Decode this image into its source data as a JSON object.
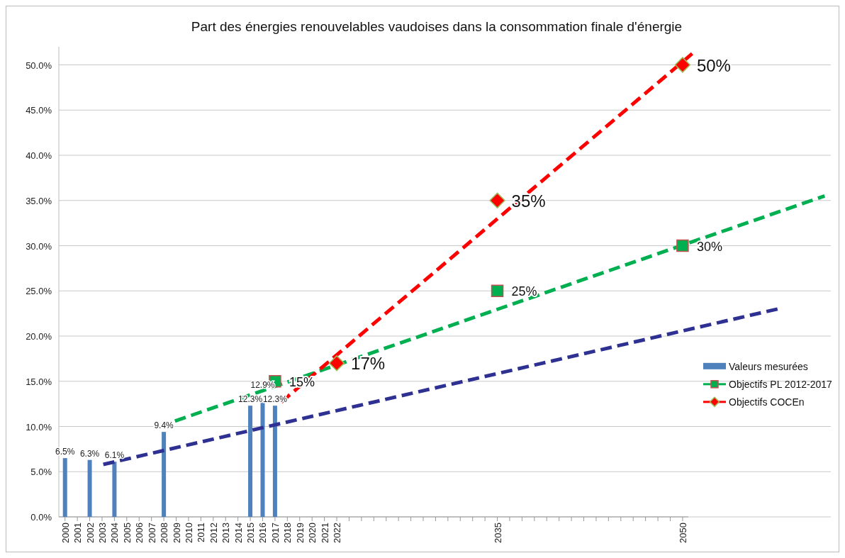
{
  "chart_data": {
    "type": "bar",
    "title": "Part des énergies renouvelables vaudoises dans la consommation finale d'énergie",
    "xlim": [
      1999.5,
      2062
    ],
    "xticks": [
      2000,
      2001,
      2002,
      2003,
      2004,
      2005,
      2006,
      2007,
      2008,
      2009,
      2010,
      2011,
      2012,
      2013,
      2014,
      2015,
      2016,
      2017,
      2018,
      2019,
      2020,
      2021,
      2022,
      {
        "value": 2023,
        "label": null
      },
      {
        "value": 2024,
        "label": null
      },
      {
        "value": 2025,
        "label": null
      },
      {
        "value": 2026,
        "label": null
      },
      {
        "value": 2027,
        "label": null
      },
      {
        "value": 2028,
        "label": null
      },
      {
        "value": 2029,
        "label": null
      },
      {
        "value": 2030,
        "label": null
      },
      {
        "value": 2031,
        "label": null
      },
      {
        "value": 2032,
        "label": null
      },
      {
        "value": 2033,
        "label": null
      },
      {
        "value": 2034,
        "label": null
      },
      2035,
      {
        "value": 2036,
        "label": null
      },
      {
        "value": 2037,
        "label": null
      },
      {
        "value": 2038,
        "label": null
      },
      {
        "value": 2039,
        "label": null
      },
      {
        "value": 2040,
        "label": null
      },
      {
        "value": 2041,
        "label": null
      },
      {
        "value": 2042,
        "label": null
      },
      {
        "value": 2043,
        "label": null
      },
      {
        "value": 2044,
        "label": null
      },
      {
        "value": 2045,
        "label": null
      },
      {
        "value": 2046,
        "label": null
      },
      {
        "value": 2047,
        "label": null
      },
      {
        "value": 2048,
        "label": null
      },
      {
        "value": 2049,
        "label": null
      },
      2050
    ],
    "ylim": [
      0,
      52
    ],
    "yticks": [
      {
        "value": 0,
        "label": "0.0%"
      },
      {
        "value": 5,
        "label": "5.0%"
      },
      {
        "value": 10,
        "label": "10.0%"
      },
      {
        "value": 15,
        "label": "15.0%"
      },
      {
        "value": 20,
        "label": "20.0%"
      },
      {
        "value": 25,
        "label": "25.0%"
      },
      {
        "value": 30,
        "label": "30.0%"
      },
      {
        "value": 35,
        "label": "35.0%"
      },
      {
        "value": 40,
        "label": "40.0%"
      },
      {
        "value": 45,
        "label": "45.0%"
      },
      {
        "value": 50,
        "label": "50.0%"
      }
    ],
    "grid": "y",
    "legend": "right",
    "series": [
      {
        "name": "Valeurs mesurées",
        "color": "#4f81bd",
        "x": [
          2000,
          2002,
          2004,
          2008,
          2015,
          2016,
          2017
        ],
        "values": [
          6.5,
          6.3,
          6.1,
          9.4,
          12.3,
          12.9,
          12.3
        ],
        "value_labels": [
          "6.5%",
          "6.3%",
          "6.1%",
          "9.4%",
          "12.3%",
          "12.9%",
          "12.3%"
        ]
      },
      {
        "type": "line",
        "color": "#2e3192",
        "line_style": "dashed",
        "x": [
          2003.1,
          2057.7
        ],
        "values": [
          5.8,
          23.0
        ]
      },
      {
        "type": "line",
        "color": "#00b050",
        "line_style": "dashed",
        "x": [
          2008.9,
          2061.5
        ],
        "values": [
          10.6,
          35.5
        ]
      },
      {
        "type": "line",
        "color": "#ff0000",
        "line_style": "dashed",
        "x": [
          2017.5,
          2051
        ],
        "values": [
          12.7,
          51.5
        ]
      },
      {
        "type": "scatter",
        "name": "Objectifs PL 2012-2017",
        "color": "#00b050",
        "marker": "square",
        "x": [
          2017,
          2035,
          2050
        ],
        "values": [
          15,
          25,
          30
        ],
        "value_labels": [
          "15%",
          "25%",
          "30%"
        ]
      },
      {
        "type": "scatter",
        "name": "Objectifs COCEn",
        "color": "#ff0000",
        "marker": "diamond",
        "x": [
          2022,
          2035,
          2050
        ],
        "values": [
          17,
          35,
          50
        ],
        "value_labels": [
          "17%",
          "35%",
          "50%"
        ]
      }
    ]
  }
}
